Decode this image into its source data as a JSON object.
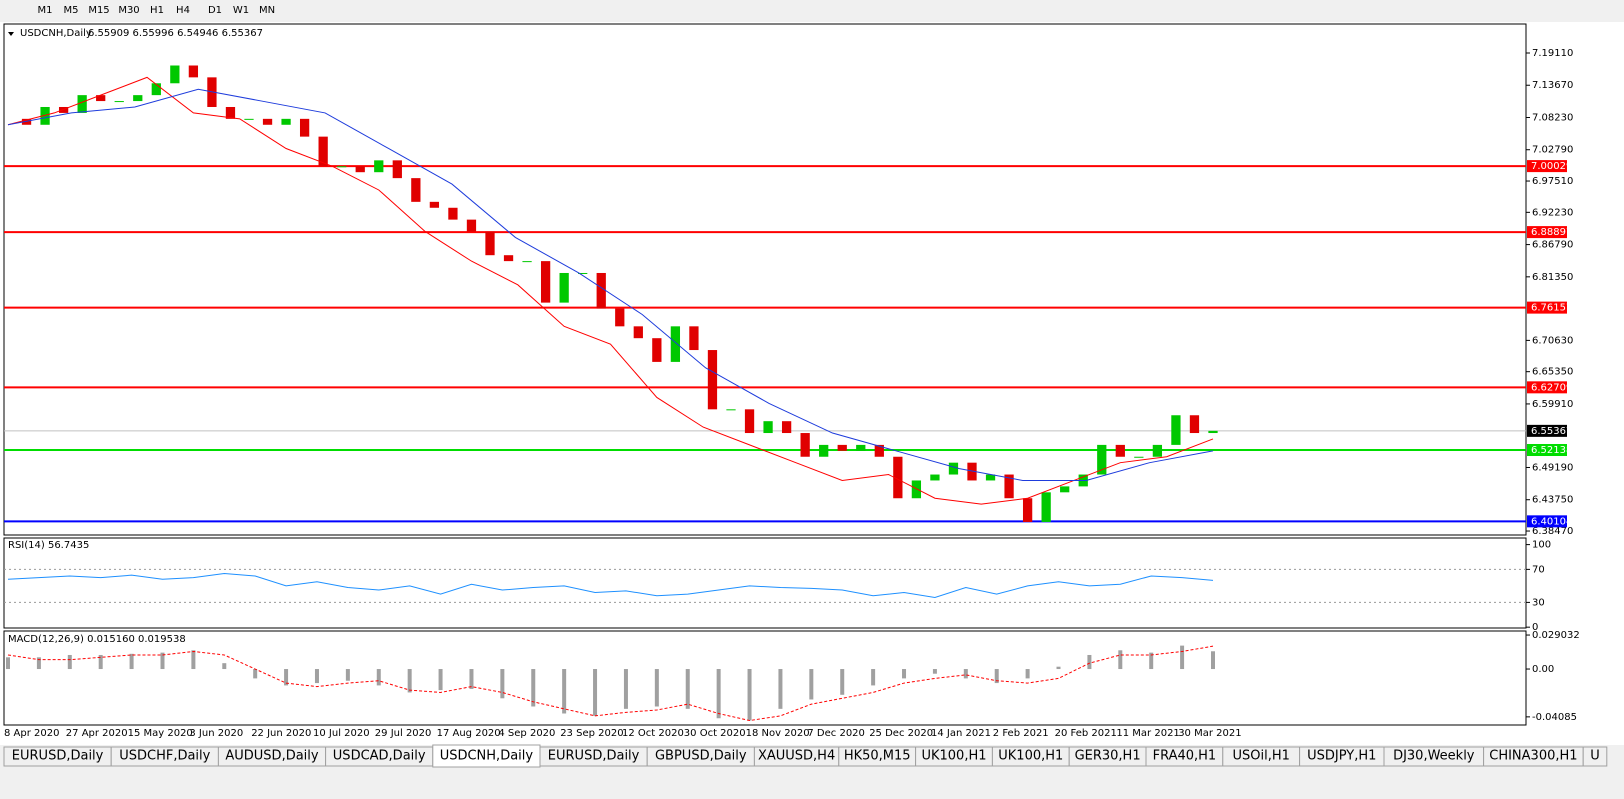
{
  "toolbar": {
    "timeframes": [
      "M1",
      "M5",
      "M15",
      "M30",
      "H1",
      "H4",
      "D1",
      "W1",
      "MN"
    ]
  },
  "chart_data": [
    {
      "type": "candlestick",
      "title": "USDCNH,Daily",
      "ohlc": "6.55909 6.55996 6.54946 6.55367",
      "closes": [
        7.08,
        7.07,
        7.1,
        7.09,
        7.12,
        7.11,
        7.11,
        7.12,
        7.14,
        7.17,
        7.15,
        7.1,
        7.08,
        7.08,
        7.07,
        7.08,
        7.05,
        7.0,
        7.0,
        6.99,
        7.01,
        6.98,
        6.94,
        6.93,
        6.91,
        6.89,
        6.85,
        6.84,
        6.84,
        6.77,
        6.82,
        6.82,
        6.76,
        6.73,
        6.71,
        6.67,
        6.73,
        6.69,
        6.59,
        6.59,
        6.55,
        6.57,
        6.55,
        6.51,
        6.53,
        6.52,
        6.53,
        6.51,
        6.44,
        6.47,
        6.48,
        6.5,
        6.47,
        6.48,
        6.44,
        6.4,
        6.45,
        6.46,
        6.48,
        6.53,
        6.51,
        6.51,
        6.53,
        6.58,
        6.55,
        6.55367
      ],
      "up_color": "#00c800",
      "down_color": "#e00000",
      "ma_fast": {
        "color": "#ff0000",
        "values": [
          7.07,
          7.09,
          7.12,
          7.15,
          7.09,
          7.08,
          7.03,
          7.0,
          6.96,
          6.89,
          6.84,
          6.8,
          6.73,
          6.7,
          6.61,
          6.56,
          6.53,
          6.5,
          6.47,
          6.48,
          6.44,
          6.43,
          6.44,
          6.47,
          6.5,
          6.51,
          6.54
        ]
      },
      "ma_slow": {
        "color": "#1e3cdc",
        "values": [
          7.07,
          7.09,
          7.1,
          7.13,
          7.11,
          7.09,
          7.03,
          6.97,
          6.88,
          6.82,
          6.75,
          6.66,
          6.6,
          6.55,
          6.52,
          6.49,
          6.47,
          6.47,
          6.5,
          6.52
        ]
      },
      "ylim": [
        6.378,
        7.24
      ],
      "yticks": [
        {
          "value": 7.1911,
          "label": "7.19110"
        },
        {
          "value": 7.1367,
          "label": "7.13670"
        },
        {
          "value": 7.0823,
          "label": "7.08230"
        },
        {
          "value": 7.0279,
          "label": "7.02790"
        },
        {
          "value": 6.9751,
          "label": "6.97510"
        },
        {
          "value": 6.9223,
          "label": "6.92230"
        },
        {
          "value": 6.8679,
          "label": "6.86790"
        },
        {
          "value": 6.8135,
          "label": "6.81350"
        },
        {
          "value": 6.7063,
          "label": "6.70630"
        },
        {
          "value": 6.6535,
          "label": "6.65350"
        },
        {
          "value": 6.5991,
          "label": "6.59910"
        },
        {
          "value": 6.4919,
          "label": "6.49190"
        },
        {
          "value": 6.4375,
          "label": "6.43750"
        },
        {
          "value": 6.3847,
          "label": "6.38470"
        }
      ],
      "levels": [
        {
          "value": 7.00029,
          "color": "#ff0000"
        },
        {
          "value": 6.88897,
          "color": "#ff0000"
        },
        {
          "value": 6.76157,
          "color": "#ff0000"
        },
        {
          "value": 6.62709,
          "color": "#ff0000"
        },
        {
          "value": 6.52138,
          "color": "#00dd00"
        },
        {
          "value": 6.40104,
          "color": "#0000ff"
        }
      ],
      "current": {
        "value": 6.55367,
        "color": "#000000"
      }
    },
    {
      "type": "line",
      "title": "RSI(14) 56.7435",
      "color": "#1e90ff",
      "values": [
        58,
        60,
        62,
        60,
        63,
        58,
        60,
        65,
        62,
        50,
        55,
        48,
        45,
        50,
        40,
        52,
        45,
        48,
        50,
        42,
        44,
        38,
        40,
        45,
        50,
        48,
        47,
        45,
        38,
        42,
        36,
        48,
        40,
        50,
        55,
        50,
        52,
        62,
        60,
        56.7435
      ],
      "ylim": [
        -1,
        108
      ],
      "yticks": [
        0,
        30,
        70,
        100
      ],
      "levels": [
        30,
        70
      ]
    },
    {
      "type": "macd",
      "title": "MACD(12,26,9) 0.015160 0.019538",
      "hist_color": "#a0a0a0",
      "signal_color": "#ff0000",
      "macd": [
        0.01,
        0.01,
        0.012,
        0.012,
        0.013,
        0.014,
        0.016,
        0.005,
        -0.008,
        -0.014,
        -0.012,
        -0.01,
        -0.014,
        -0.02,
        -0.018,
        -0.017,
        -0.025,
        -0.032,
        -0.038,
        -0.04,
        -0.034,
        -0.032,
        -0.034,
        -0.042,
        -0.044,
        -0.034,
        -0.026,
        -0.022,
        -0.014,
        -0.008,
        -0.004,
        -0.008,
        -0.012,
        -0.008,
        0.002,
        0.012,
        0.016,
        0.014,
        0.02,
        0.01516
      ],
      "signal": [
        0.012,
        0.008,
        0.008,
        0.01,
        0.012,
        0.012,
        0.015,
        0.012,
        0.0,
        -0.012,
        -0.015,
        -0.012,
        -0.01,
        -0.018,
        -0.02,
        -0.015,
        -0.02,
        -0.028,
        -0.034,
        -0.04,
        -0.037,
        -0.035,
        -0.03,
        -0.038,
        -0.044,
        -0.04,
        -0.03,
        -0.025,
        -0.02,
        -0.012,
        -0.008,
        -0.005,
        -0.01,
        -0.012,
        -0.008,
        0.005,
        0.012,
        0.012,
        0.015,
        0.019538
      ],
      "ylim": [
        -0.0478,
        0.03248
      ],
      "yticks": [
        0.029032,
        {
          "value": 0,
          "label": "0.00"
        },
        -0.04085
      ]
    }
  ],
  "x_labels": [
    "8 Apr 2020",
    "27 Apr 2020",
    "15 May 2020",
    "3 Jun 2020",
    "22 Jun 2020",
    "10 Jul 2020",
    "29 Jul 2020",
    "17 Aug 2020",
    "4 Sep 2020",
    "23 Sep 2020",
    "12 Oct 2020",
    "30 Oct 2020",
    "18 Nov 2020",
    "7 Dec 2020",
    "25 Dec 2020",
    "14 Jan 2021",
    "2 Feb 2021",
    "20 Feb 2021",
    "11 Mar 2021",
    "30 Mar 2021"
  ],
  "tabs": {
    "items": [
      "EURUSD,Daily",
      "USDCHF,Daily",
      "AUDUSD,Daily",
      "USDCAD,Daily",
      "USDCNH,Daily",
      "EURUSD,Daily",
      "GBPUSD,Daily",
      "XAUUSD,H4",
      "HK50,M15",
      "UK100,H1",
      "UK100,H1",
      "GER30,H1",
      "FRA40,H1",
      "USOil,H1",
      "USDJPY,H1",
      "DJ30,Weekly",
      "CHINA300,H1",
      "U"
    ],
    "active": 4
  }
}
